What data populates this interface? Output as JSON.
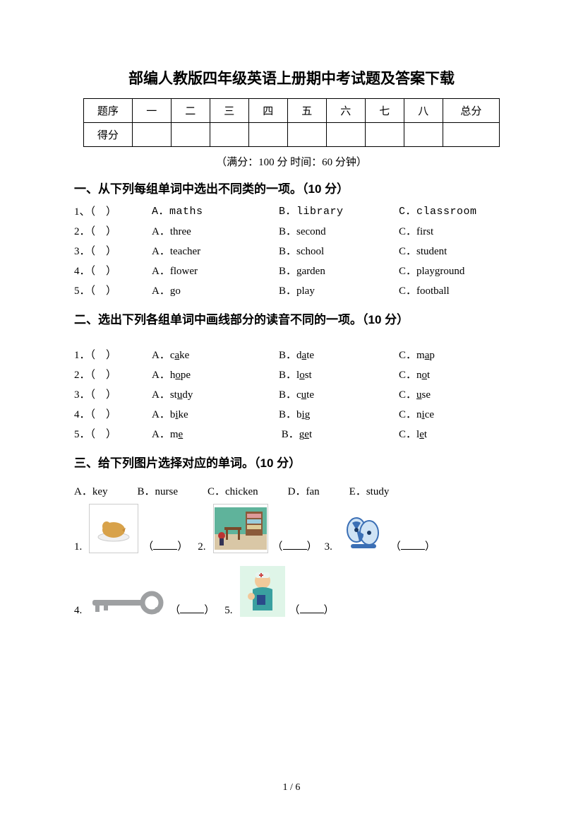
{
  "title": "部编人教版四年级英语上册期中考试题及答案下载",
  "scoreTable": {
    "row1": [
      "题序",
      "一",
      "二",
      "三",
      "四",
      "五",
      "六",
      "七",
      "八",
      "总分"
    ],
    "row2Label": "得分"
  },
  "meta": "（满分：100 分    时间：60 分钟）",
  "section1": {
    "heading": "一、从下列每组单词中选出不同类的一项。（10 分）",
    "rows": [
      {
        "n": "1、（    ）",
        "a": "A．maths",
        "b": "B．library",
        "c": "C．classroom",
        "mono": true
      },
      {
        "n": "2．（    ）",
        "a": "A．three",
        "b": "B．second",
        "c": "C．first"
      },
      {
        "n": "3．（    ）",
        "a": "A．teacher",
        "b": "B．school",
        "c": "C．student"
      },
      {
        "n": "4．（    ）",
        "a": "A．flower",
        "b": "B．garden",
        "c": "C．playground"
      },
      {
        "n": "5．（    ）",
        "a": "A．go",
        "b": "B．play",
        "c": "C．football"
      }
    ]
  },
  "section2": {
    "heading": "二、选出下列各组单词中画线部分的读音不同的一项。（10 分）",
    "rows": [
      {
        "n": "1．（    ）",
        "a": {
          "pre": "A．c",
          "u": "a",
          "post": "ke"
        },
        "b": {
          "pre": "B．d",
          "u": "a",
          "post": "te"
        },
        "c": {
          "pre": "C．m",
          "u": "a",
          "post": "p"
        }
      },
      {
        "n": "2．（    ）",
        "a": {
          "pre": "A．h",
          "u": "o",
          "post": "pe"
        },
        "b": {
          "pre": "B．l",
          "u": "o",
          "post": "st"
        },
        "c": {
          "pre": "C．n",
          "u": "o",
          "post": "t"
        }
      },
      {
        "n": "3．（    ）",
        "a": {
          "pre": "A．st",
          "u": "u",
          "post": "dy"
        },
        "b": {
          "pre": "B．c",
          "u": "u",
          "post": "te"
        },
        "c": {
          "pre": "C．",
          "u": "u",
          "post": "se"
        }
      },
      {
        "n": "4．（    ）",
        "a": {
          "pre": "A．b",
          "u": "i",
          "post": "ke"
        },
        "b": {
          "pre": "B．b",
          "u": "i",
          "post": "g"
        },
        "c": {
          "pre": "C．n",
          "u": "i",
          "post": "ce"
        }
      },
      {
        "n": "5．（    ）",
        "a": {
          "pre": "A．m",
          "u": "e",
          "post": ""
        },
        "b": {
          "pre": " B．g",
          "u": "e",
          "post": "t"
        },
        "c": {
          "pre": "C．l",
          "u": "e",
          "post": "t"
        }
      }
    ]
  },
  "section3": {
    "heading": "三、给下列图片选择对应的单词。（10 分）",
    "bank": [
      "A．key",
      "B．nurse",
      "C．chicken",
      "D．fan",
      "E．study"
    ],
    "row1": [
      "1.",
      "2.",
      "3."
    ],
    "row2": [
      "4.",
      "5."
    ]
  },
  "footer": "1  /  6",
  "colors": {
    "text": "#000000",
    "bg": "#ffffff",
    "plate": "#ffffff",
    "chicken": "#d8a24a",
    "room_wall": "#5fb39b",
    "room_floor": "#d9c7a6",
    "fan_blue": "#3b6fb5",
    "key_gray": "#9ea0a2",
    "nurse_skin": "#f2c99a",
    "nurse_uniform": "#3aa0a0",
    "nurse_bg": "#dff5e8"
  }
}
